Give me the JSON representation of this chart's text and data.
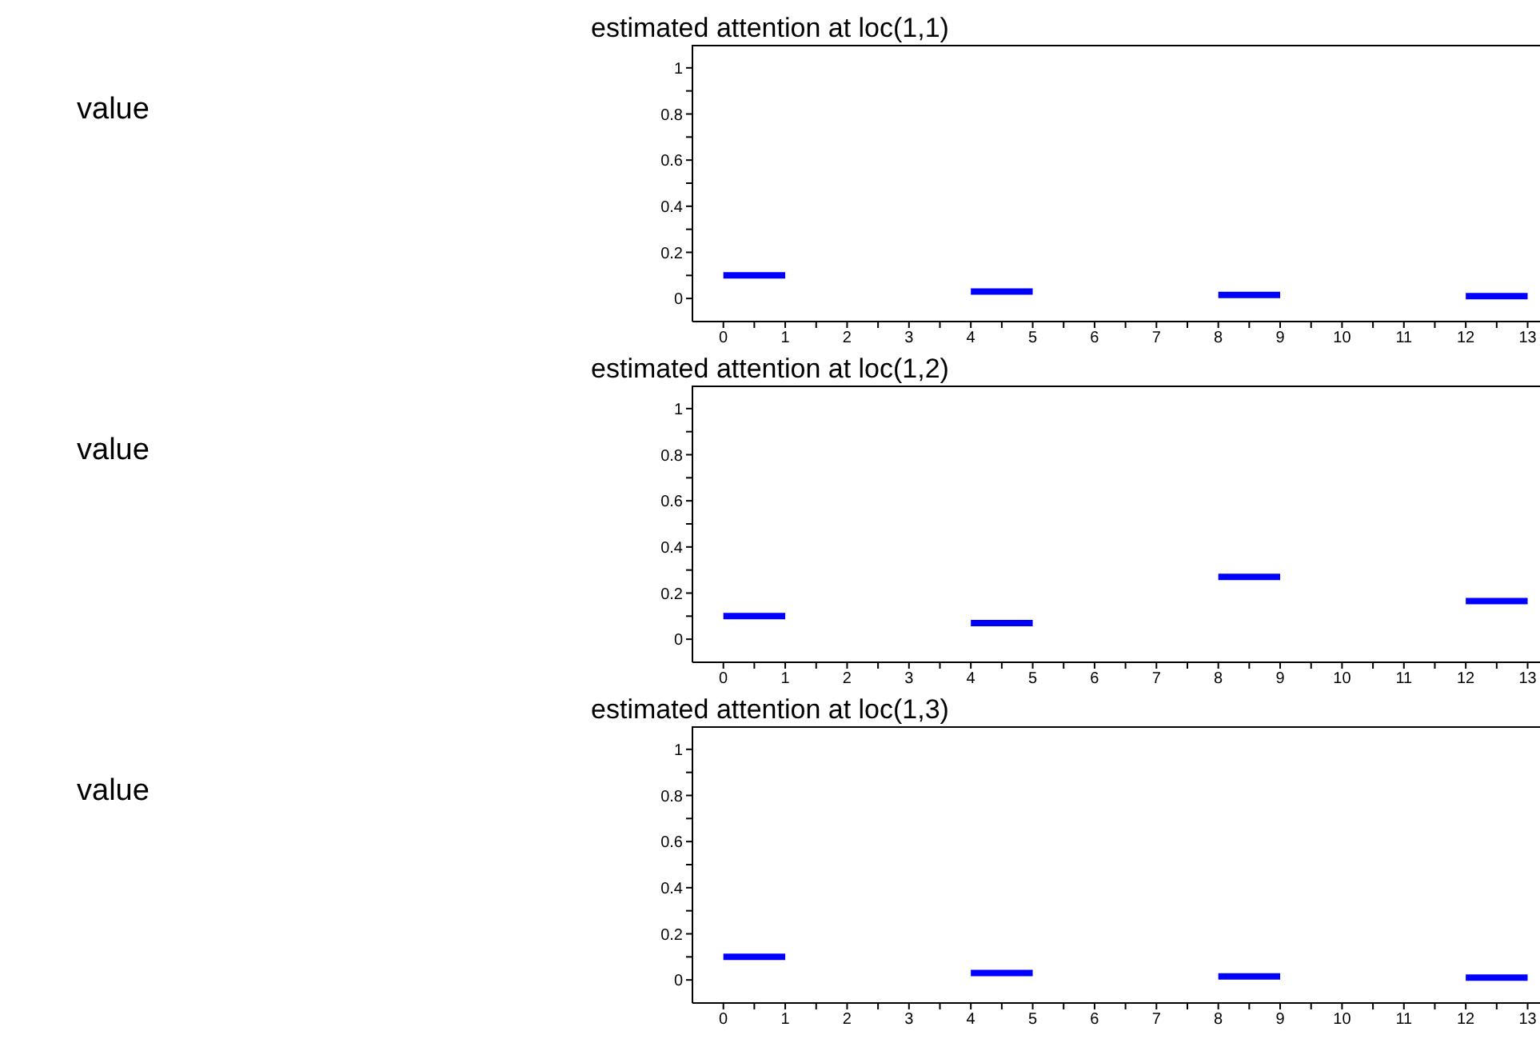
{
  "chart_data": [
    {
      "type": "line",
      "title": "estimated attention at loc(1,1)",
      "ylabel": "value",
      "x": [
        0,
        1,
        2,
        4,
        5,
        6,
        8,
        9,
        10,
        12,
        13
      ],
      "series": [
        {
          "color": "#0000ff",
          "values": [
            0.1,
            0.1,
            null,
            0.03,
            0.03,
            null,
            0.015,
            0.015,
            null,
            0.01,
            0.01
          ]
        }
      ],
      "xlim": [
        -0.5,
        13.2
      ],
      "ylim": [
        -0.1,
        1.1
      ],
      "xticks": [
        0,
        {
          "value": 0.5,
          "label": null
        },
        1,
        {
          "value": 1.5,
          "label": null
        },
        2,
        {
          "value": 2.5,
          "label": null
        },
        3,
        {
          "value": 3.5,
          "label": null
        },
        4,
        {
          "value": 4.5,
          "label": null
        },
        5,
        {
          "value": 5.5,
          "label": null
        },
        6,
        {
          "value": 6.5,
          "label": null
        },
        7,
        {
          "value": 7.5,
          "label": null
        },
        8,
        {
          "value": 8.5,
          "label": null
        },
        9,
        {
          "value": 9.5,
          "label": null
        },
        10,
        {
          "value": 10.5,
          "label": null
        },
        11,
        {
          "value": 11.5,
          "label": null
        },
        12,
        {
          "value": 12.5,
          "label": null
        },
        13
      ],
      "yticks": [
        0,
        {
          "value": 0.1,
          "label": null
        },
        0.2,
        {
          "value": 0.3,
          "label": null
        },
        0.4,
        {
          "value": 0.5,
          "label": null
        },
        0.6,
        {
          "value": 0.7,
          "label": null
        },
        0.8,
        {
          "value": 0.9,
          "label": null
        },
        1
      ],
      "marker": "none",
      "line_style": "solid",
      "grid": false
    },
    {
      "type": "line",
      "title": "estimated attention at loc(1,2)",
      "ylabel": "value",
      "x": [
        0,
        1,
        2,
        4,
        5,
        6,
        8,
        9,
        10,
        12,
        13
      ],
      "series": [
        {
          "color": "#0000ff",
          "values": [
            0.1,
            0.1,
            null,
            0.07,
            0.07,
            null,
            0.27,
            0.27,
            null,
            0.165,
            0.165
          ]
        }
      ],
      "xlim": [
        -0.5,
        13.2
      ],
      "ylim": [
        -0.1,
        1.1
      ],
      "xticks": [
        0,
        {
          "value": 0.5,
          "label": null
        },
        1,
        {
          "value": 1.5,
          "label": null
        },
        2,
        {
          "value": 2.5,
          "label": null
        },
        3,
        {
          "value": 3.5,
          "label": null
        },
        4,
        {
          "value": 4.5,
          "label": null
        },
        5,
        {
          "value": 5.5,
          "label": null
        },
        6,
        {
          "value": 6.5,
          "label": null
        },
        7,
        {
          "value": 7.5,
          "label": null
        },
        8,
        {
          "value": 8.5,
          "label": null
        },
        9,
        {
          "value": 9.5,
          "label": null
        },
        10,
        {
          "value": 10.5,
          "label": null
        },
        11,
        {
          "value": 11.5,
          "label": null
        },
        12,
        {
          "value": 12.5,
          "label": null
        },
        13
      ],
      "yticks": [
        0,
        {
          "value": 0.1,
          "label": null
        },
        0.2,
        {
          "value": 0.3,
          "label": null
        },
        0.4,
        {
          "value": 0.5,
          "label": null
        },
        0.6,
        {
          "value": 0.7,
          "label": null
        },
        0.8,
        {
          "value": 0.9,
          "label": null
        },
        1
      ],
      "marker": "none",
      "line_style": "solid",
      "grid": false
    },
    {
      "type": "line",
      "title": "estimated attention at loc(1,3)",
      "ylabel": "value",
      "x": [
        0,
        1,
        2,
        4,
        5,
        6,
        8,
        9,
        10,
        12,
        13
      ],
      "series": [
        {
          "color": "#0000ff",
          "values": [
            0.1,
            0.1,
            null,
            0.03,
            0.03,
            null,
            0.015,
            0.015,
            null,
            0.01,
            0.01
          ]
        }
      ],
      "xlim": [
        -0.5,
        13.2
      ],
      "ylim": [
        -0.1,
        1.1
      ],
      "xticks": [
        0,
        {
          "value": 0.5,
          "label": null
        },
        1,
        {
          "value": 1.5,
          "label": null
        },
        2,
        {
          "value": 2.5,
          "label": null
        },
        3,
        {
          "value": 3.5,
          "label": null
        },
        4,
        {
          "value": 4.5,
          "label": null
        },
        5,
        {
          "value": 5.5,
          "label": null
        },
        6,
        {
          "value": 6.5,
          "label": null
        },
        7,
        {
          "value": 7.5,
          "label": null
        },
        8,
        {
          "value": 8.5,
          "label": null
        },
        9,
        {
          "value": 9.5,
          "label": null
        },
        10,
        {
          "value": 10.5,
          "label": null
        },
        11,
        {
          "value": 11.5,
          "label": null
        },
        12,
        {
          "value": 12.5,
          "label": null
        },
        13
      ],
      "yticks": [
        0,
        {
          "value": 0.1,
          "label": null
        },
        0.2,
        {
          "value": 0.3,
          "label": null
        },
        0.4,
        {
          "value": 0.5,
          "label": null
        },
        0.6,
        {
          "value": 0.7,
          "label": null
        },
        0.8,
        {
          "value": 0.9,
          "label": null
        },
        1
      ],
      "marker": "none",
      "line_style": "solid",
      "grid": false
    }
  ]
}
